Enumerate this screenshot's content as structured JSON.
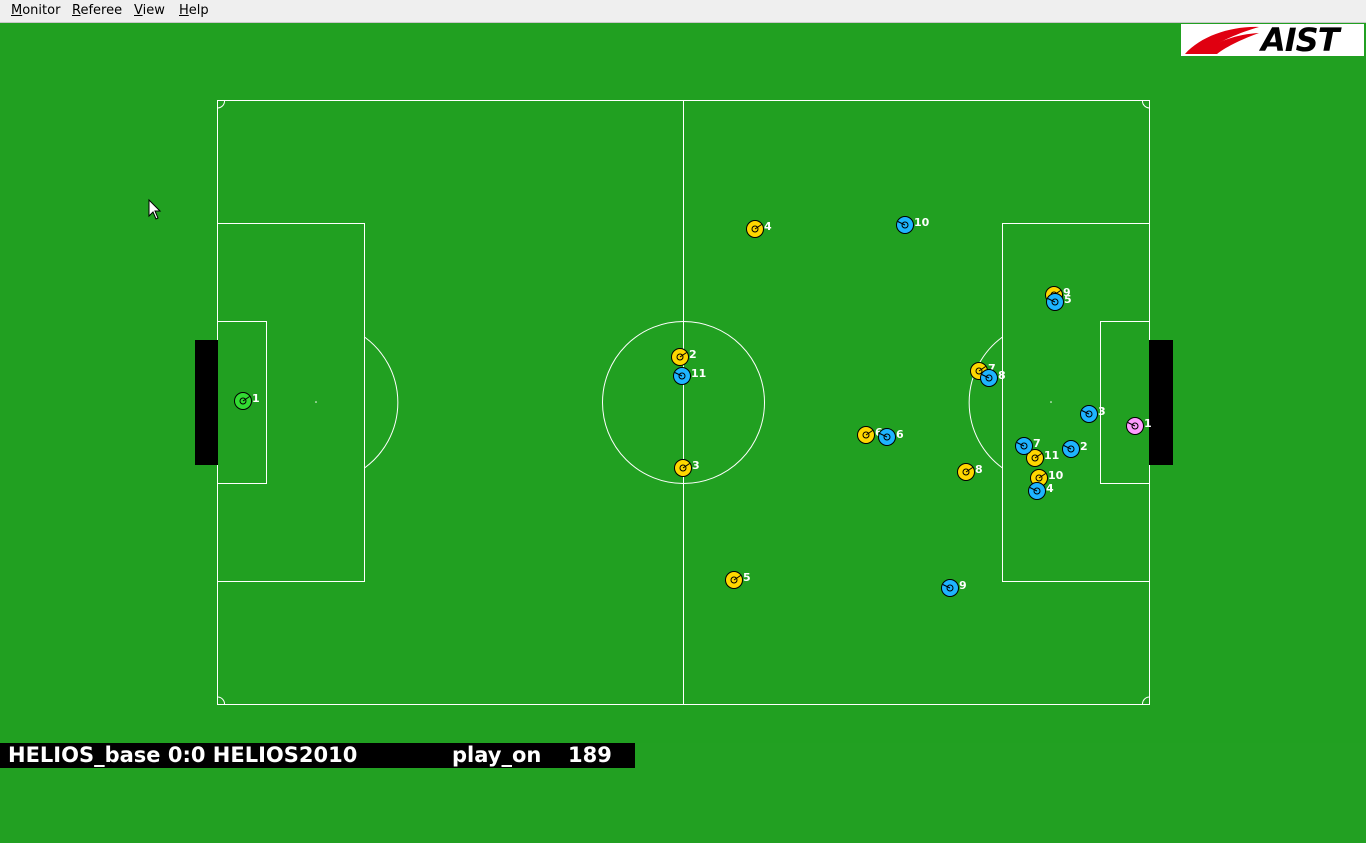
{
  "menu": {
    "items": [
      {
        "id": "monitor",
        "label_ul": "M",
        "label_rest": "onitor"
      },
      {
        "id": "referee",
        "label_ul": "R",
        "label_rest": "eferee"
      },
      {
        "id": "view",
        "label_ul": "V",
        "label_rest": "iew"
      },
      {
        "id": "help",
        "label_ul": "H",
        "label_rest": "elp"
      }
    ]
  },
  "logo": {
    "text": "AIST"
  },
  "status": {
    "score": "HELIOS_base 0:0 HELIOS2010",
    "playmode": "play_on",
    "cycle": "189"
  },
  "colors": {
    "field": "#21a021",
    "line": "#ffffff",
    "goal": "#000000",
    "team_left": "#ffd700",
    "team_right": "#1eb4ff",
    "goalie_left": "#32dc32",
    "goalie_right": "#ff9bff"
  },
  "players": [
    {
      "team": "left",
      "number": "1",
      "goalie": true
    },
    {
      "team": "left",
      "number": "2"
    },
    {
      "team": "left",
      "number": "3"
    },
    {
      "team": "left",
      "number": "4"
    },
    {
      "team": "left",
      "number": "5"
    },
    {
      "team": "left",
      "number": "6"
    },
    {
      "team": "left",
      "number": "7"
    },
    {
      "team": "left",
      "number": "8"
    },
    {
      "team": "left",
      "number": "9"
    },
    {
      "team": "left",
      "number": "10"
    },
    {
      "team": "left",
      "number": "11"
    },
    {
      "team": "right",
      "number": "1",
      "goalie": true
    },
    {
      "team": "right",
      "number": "2"
    },
    {
      "team": "right",
      "number": "3"
    },
    {
      "team": "right",
      "number": "4"
    },
    {
      "team": "right",
      "number": "5"
    },
    {
      "team": "right",
      "number": "6"
    },
    {
      "team": "right",
      "number": "7"
    },
    {
      "team": "right",
      "number": "8"
    },
    {
      "team": "right",
      "number": "9"
    },
    {
      "team": "right",
      "number": "10"
    },
    {
      "team": "right",
      "number": "11"
    }
  ]
}
